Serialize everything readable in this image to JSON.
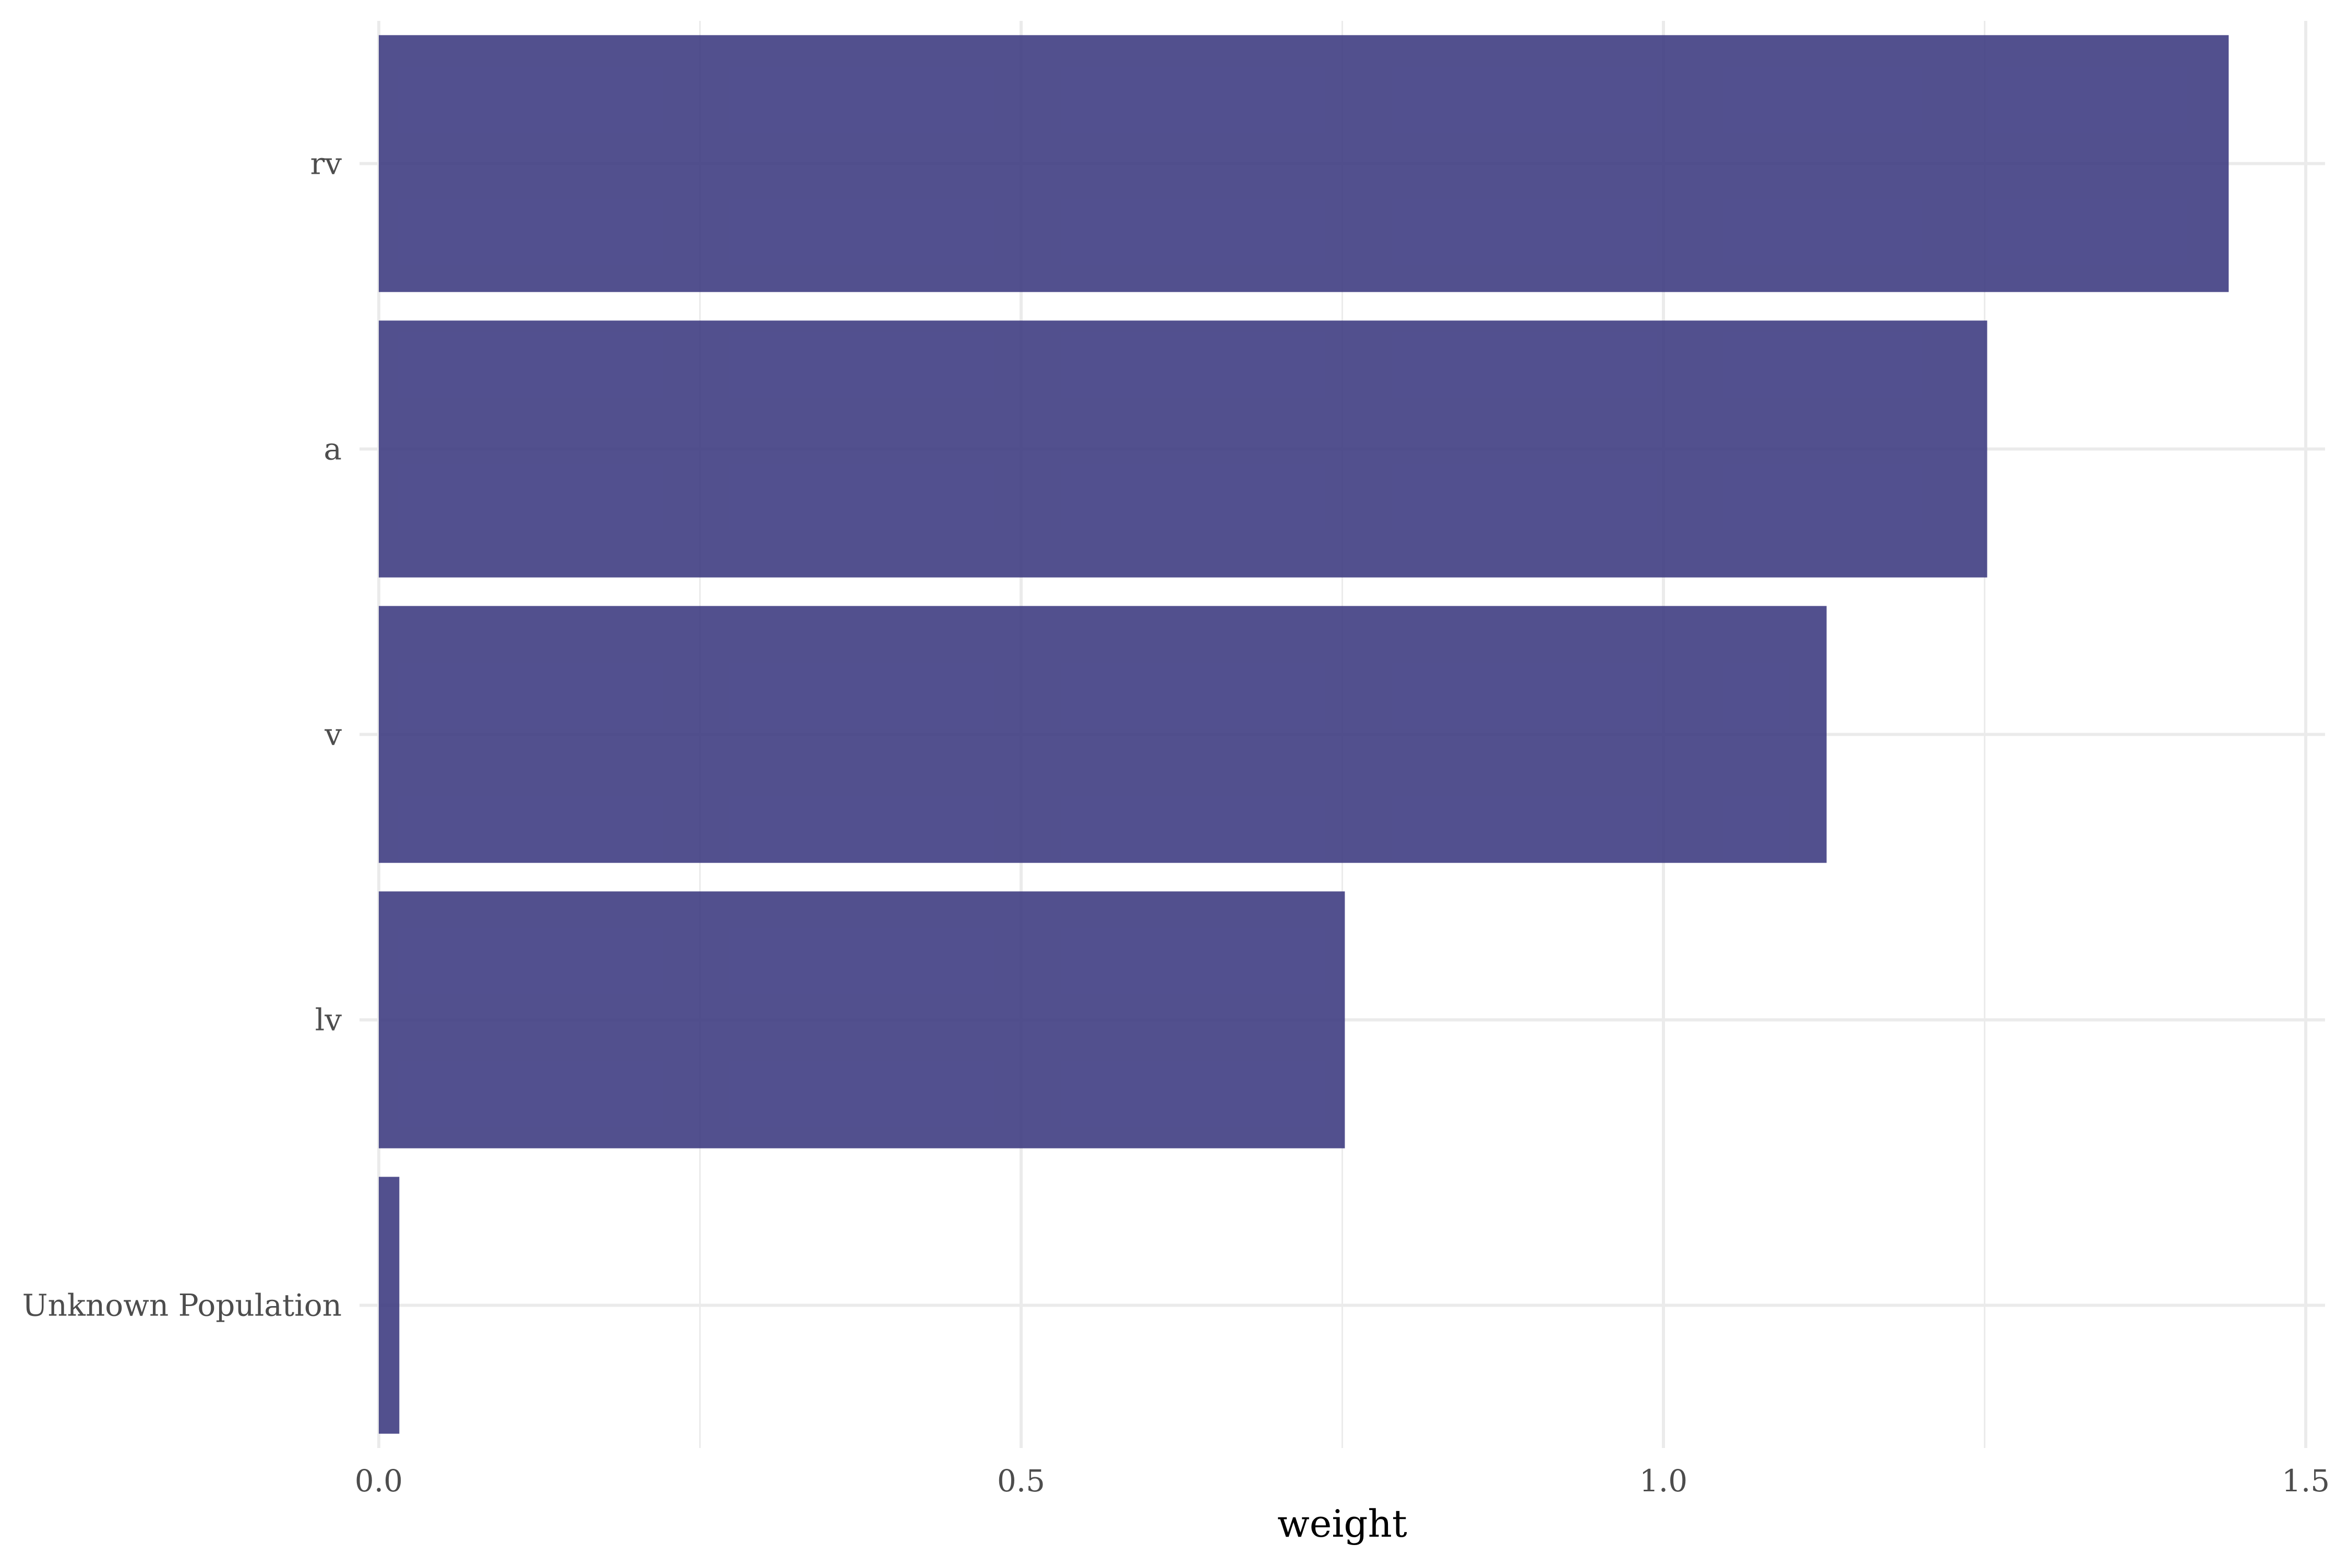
{
  "chart_data": {
    "type": "bar",
    "orientation": "horizontal",
    "title": "",
    "xlabel": "weight",
    "ylabel": "",
    "categories": [
      "rv",
      "a",
      "v",
      "lv",
      "Unknown Population"
    ],
    "values": [
      1.44,
      1.252,
      1.127,
      0.752,
      0.016
    ],
    "xlim": [
      -0.015,
      1.515
    ],
    "x_ticks": [
      0.0,
      0.5,
      1.0,
      1.5
    ],
    "x_tick_labels": [
      "0.0",
      "0.5",
      "1.0",
      "1.5"
    ],
    "grid": true,
    "legend": "none",
    "bar_color": "#3f3d82",
    "grid_color": "#ebebeb"
  }
}
